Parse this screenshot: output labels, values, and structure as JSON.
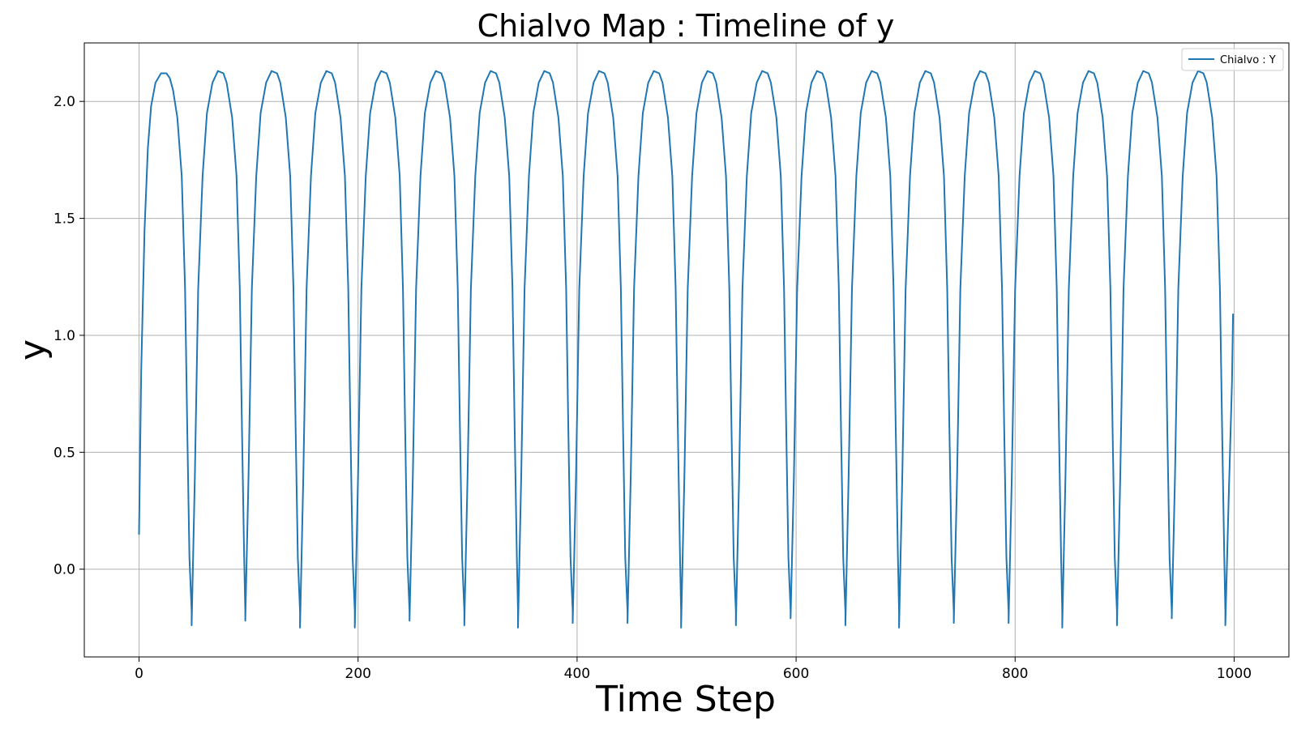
{
  "chart_data": {
    "type": "line",
    "title": "Chialvo Map : Timeline of y",
    "xlabel": "Time Step",
    "ylabel": "y",
    "xlim": [
      -50,
      1050
    ],
    "ylim": [
      -0.375,
      2.25
    ],
    "xticks": [
      0,
      200,
      400,
      600,
      800,
      1000
    ],
    "xtick_labels": [
      "0",
      "200",
      "400",
      "600",
      "800",
      "1000"
    ],
    "yticks": [
      0.0,
      0.5,
      1.0,
      1.5,
      2.0
    ],
    "ytick_labels": [
      "0.0",
      "0.5",
      "1.0",
      "1.5",
      "2.0"
    ],
    "grid": true,
    "legend_position": "top-right",
    "series": [
      {
        "name": "Chialvo : Y",
        "color": "#1f77b4",
        "x": [
          0,
          2,
          5,
          8,
          11,
          15,
          20,
          25,
          28,
          31,
          35,
          39,
          42,
          44,
          46,
          48,
          48,
          51,
          54,
          58,
          62,
          67,
          72,
          77,
          80,
          85,
          89,
          92,
          94,
          96,
          97,
          97,
          100,
          103,
          107,
          111,
          116,
          121,
          126,
          129,
          134,
          138,
          141,
          143,
          145,
          147,
          147,
          150,
          153,
          157,
          161,
          166,
          171,
          176,
          179,
          184,
          188,
          191,
          193,
          195,
          197,
          197,
          200,
          203,
          207,
          211,
          216,
          221,
          226,
          229,
          234,
          238,
          241,
          243,
          245,
          247,
          247,
          250,
          253,
          257,
          261,
          266,
          271,
          276,
          279,
          284,
          288,
          291,
          293,
          295,
          297,
          297,
          300,
          303,
          307,
          311,
          316,
          321,
          326,
          329,
          334,
          338,
          341,
          343,
          345,
          346,
          346,
          349,
          352,
          356,
          360,
          365,
          370,
          375,
          378,
          383,
          387,
          390,
          392,
          394,
          396,
          396,
          399,
          402,
          406,
          410,
          415,
          420,
          425,
          428,
          433,
          437,
          440,
          442,
          444,
          446,
          446,
          449,
          452,
          456,
          460,
          465,
          470,
          475,
          478,
          483,
          487,
          490,
          492,
          494,
          495,
          495,
          498,
          501,
          505,
          509,
          514,
          519,
          524,
          527,
          532,
          536,
          539,
          541,
          543,
          545,
          545,
          548,
          551,
          555,
          559,
          564,
          569,
          574,
          577,
          582,
          586,
          589,
          591,
          593,
          595,
          595,
          598,
          601,
          605,
          609,
          614,
          619,
          624,
          627,
          632,
          636,
          639,
          641,
          643,
          645,
          645,
          648,
          651,
          655,
          659,
          664,
          669,
          674,
          677,
          682,
          686,
          689,
          691,
          693,
          694,
          694,
          697,
          700,
          704,
          708,
          713,
          718,
          723,
          726,
          731,
          735,
          738,
          740,
          742,
          744,
          744,
          747,
          750,
          754,
          758,
          763,
          768,
          773,
          776,
          781,
          785,
          788,
          790,
          792,
          794,
          794,
          797,
          800,
          804,
          808,
          813,
          818,
          823,
          826,
          831,
          835,
          838,
          840,
          842,
          843,
          843,
          846,
          849,
          853,
          857,
          862,
          867,
          872,
          875,
          880,
          884,
          887,
          889,
          891,
          893,
          893,
          896,
          899,
          903,
          907,
          912,
          917,
          922,
          925,
          930,
          934,
          937,
          939,
          941,
          943,
          943,
          946,
          949,
          953,
          957,
          962,
          967,
          972,
          975,
          980,
          984,
          987,
          989,
          991,
          992,
          992,
          995,
          998,
          999
        ],
        "y": [
          0.15,
          0.85,
          1.45,
          1.8,
          1.98,
          2.08,
          2.12,
          2.12,
          2.1,
          2.05,
          1.93,
          1.68,
          1.2,
          0.6,
          0.05,
          -0.18,
          -0.24,
          0.4,
          1.2,
          1.68,
          1.95,
          2.08,
          2.13,
          2.12,
          2.08,
          1.93,
          1.68,
          1.2,
          0.6,
          0.05,
          -0.18,
          -0.22,
          0.4,
          1.2,
          1.68,
          1.95,
          2.08,
          2.13,
          2.12,
          2.08,
          1.93,
          1.68,
          1.2,
          0.6,
          0.05,
          -0.18,
          -0.25,
          0.4,
          1.2,
          1.68,
          1.95,
          2.08,
          2.13,
          2.12,
          2.08,
          1.93,
          1.68,
          1.2,
          0.6,
          0.05,
          -0.18,
          -0.25,
          0.4,
          1.2,
          1.68,
          1.95,
          2.08,
          2.13,
          2.12,
          2.08,
          1.93,
          1.68,
          1.2,
          0.6,
          0.05,
          -0.18,
          -0.22,
          0.4,
          1.2,
          1.68,
          1.95,
          2.08,
          2.13,
          2.12,
          2.08,
          1.93,
          1.68,
          1.2,
          0.6,
          0.05,
          -0.18,
          -0.24,
          0.4,
          1.2,
          1.68,
          1.95,
          2.08,
          2.13,
          2.12,
          2.08,
          1.93,
          1.68,
          1.2,
          0.6,
          0.05,
          -0.18,
          -0.25,
          0.4,
          1.2,
          1.68,
          1.95,
          2.08,
          2.13,
          2.12,
          2.08,
          1.93,
          1.68,
          1.2,
          0.6,
          0.05,
          -0.18,
          -0.23,
          0.4,
          1.2,
          1.68,
          1.95,
          2.08,
          2.13,
          2.12,
          2.08,
          1.93,
          1.68,
          1.2,
          0.6,
          0.05,
          -0.18,
          -0.23,
          0.4,
          1.2,
          1.68,
          1.95,
          2.08,
          2.13,
          2.12,
          2.08,
          1.93,
          1.68,
          1.2,
          0.6,
          0.05,
          -0.18,
          -0.25,
          0.4,
          1.2,
          1.68,
          1.95,
          2.08,
          2.13,
          2.12,
          2.08,
          1.93,
          1.68,
          1.2,
          0.6,
          0.05,
          -0.18,
          -0.24,
          0.4,
          1.2,
          1.68,
          1.95,
          2.08,
          2.13,
          2.12,
          2.08,
          1.93,
          1.68,
          1.2,
          0.6,
          0.05,
          -0.18,
          -0.21,
          0.4,
          1.2,
          1.68,
          1.95,
          2.08,
          2.13,
          2.12,
          2.08,
          1.93,
          1.68,
          1.2,
          0.6,
          0.05,
          -0.18,
          -0.24,
          0.4,
          1.2,
          1.68,
          1.95,
          2.08,
          2.13,
          2.12,
          2.08,
          1.93,
          1.68,
          1.2,
          0.6,
          0.05,
          -0.18,
          -0.25,
          0.4,
          1.2,
          1.68,
          1.95,
          2.08,
          2.13,
          2.12,
          2.08,
          1.93,
          1.68,
          1.2,
          0.6,
          0.05,
          -0.18,
          -0.23,
          0.4,
          1.2,
          1.68,
          1.95,
          2.08,
          2.13,
          2.12,
          2.08,
          1.93,
          1.68,
          1.2,
          0.6,
          0.05,
          -0.18,
          -0.23,
          0.4,
          1.2,
          1.68,
          1.95,
          2.08,
          2.13,
          2.12,
          2.08,
          1.93,
          1.68,
          1.2,
          0.6,
          0.05,
          -0.18,
          -0.25,
          0.4,
          1.2,
          1.68,
          1.95,
          2.08,
          2.13,
          2.12,
          2.08,
          1.93,
          1.68,
          1.2,
          0.6,
          0.05,
          -0.18,
          -0.24,
          0.4,
          1.2,
          1.68,
          1.95,
          2.08,
          2.13,
          2.12,
          2.08,
          1.93,
          1.68,
          1.2,
          0.6,
          0.05,
          -0.18,
          -0.21,
          0.4,
          1.2,
          1.68,
          1.95,
          2.08,
          2.13,
          2.12,
          2.08,
          1.93,
          1.68,
          1.2,
          0.6,
          0.05,
          -0.18,
          -0.24,
          0.3,
          0.8,
          1.09
        ]
      }
    ]
  }
}
